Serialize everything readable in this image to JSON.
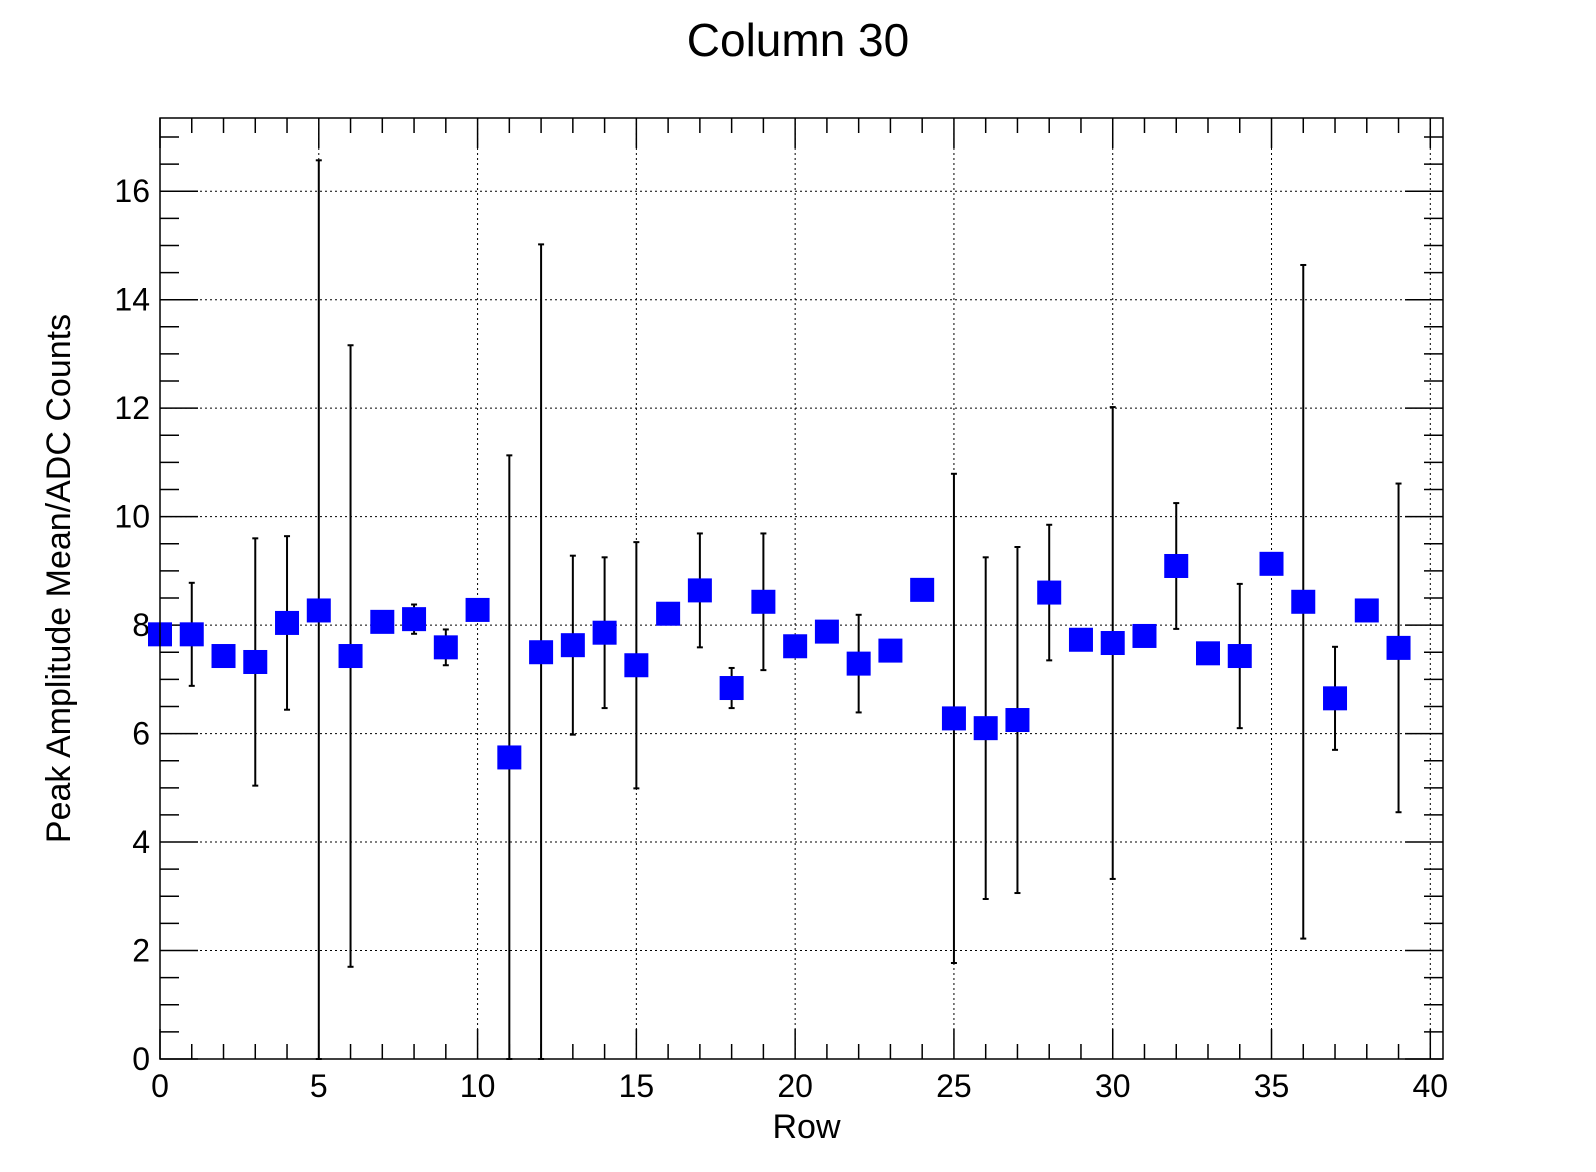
{
  "chart_data": {
    "type": "scatter",
    "title": "Column 30",
    "xlabel": "Row",
    "ylabel": "Peak Amplitude Mean/ADC Counts",
    "xlim": [
      0,
      40.4
    ],
    "ylim": [
      0,
      17.35
    ],
    "xticks": [
      0,
      5,
      10,
      15,
      20,
      25,
      30,
      35,
      40
    ],
    "yticks": [
      0,
      2,
      4,
      6,
      8,
      10,
      12,
      14,
      16
    ],
    "grid": true,
    "marker_color": "#0000ff",
    "points": [
      {
        "x": 0,
        "y": 7.83,
        "err": 0
      },
      {
        "x": 1,
        "y": 7.83,
        "err": 0.95
      },
      {
        "x": 2,
        "y": 7.43,
        "err": 0
      },
      {
        "x": 3,
        "y": 7.32,
        "err": 2.28
      },
      {
        "x": 4,
        "y": 8.04,
        "err": 1.6
      },
      {
        "x": 5,
        "y": 8.27,
        "err": 8.3
      },
      {
        "x": 6,
        "y": 7.43,
        "err": 5.73
      },
      {
        "x": 7,
        "y": 8.06,
        "err": 0
      },
      {
        "x": 8,
        "y": 8.11,
        "err": 0.27
      },
      {
        "x": 9,
        "y": 7.59,
        "err": 0.33
      },
      {
        "x": 10,
        "y": 8.28,
        "err": 0
      },
      {
        "x": 11,
        "y": 5.56,
        "err": 5.57
      },
      {
        "x": 12,
        "y": 7.5,
        "err": 7.52
      },
      {
        "x": 13,
        "y": 7.63,
        "err": 1.65
      },
      {
        "x": 14,
        "y": 7.86,
        "err": 1.39
      },
      {
        "x": 15,
        "y": 7.26,
        "err": 2.27
      },
      {
        "x": 16,
        "y": 8.21,
        "err": 0
      },
      {
        "x": 17,
        "y": 8.64,
        "err": 1.05
      },
      {
        "x": 18,
        "y": 6.84,
        "err": 0.37
      },
      {
        "x": 19,
        "y": 8.43,
        "err": 1.26
      },
      {
        "x": 20,
        "y": 7.61,
        "err": 0
      },
      {
        "x": 21,
        "y": 7.88,
        "err": 0
      },
      {
        "x": 22,
        "y": 7.29,
        "err": 0.9
      },
      {
        "x": 23,
        "y": 7.53,
        "err": 0
      },
      {
        "x": 24,
        "y": 8.65,
        "err": 0
      },
      {
        "x": 25,
        "y": 6.28,
        "err": 4.51
      },
      {
        "x": 26,
        "y": 6.1,
        "err": 3.15
      },
      {
        "x": 27,
        "y": 6.25,
        "err": 3.19
      },
      {
        "x": 28,
        "y": 8.6,
        "err": 1.25
      },
      {
        "x": 29,
        "y": 7.73,
        "err": 0
      },
      {
        "x": 30,
        "y": 7.67,
        "err": 4.35
      },
      {
        "x": 31,
        "y": 7.8,
        "err": 0
      },
      {
        "x": 32,
        "y": 9.09,
        "err": 1.16
      },
      {
        "x": 33,
        "y": 7.48,
        "err": 0
      },
      {
        "x": 34,
        "y": 7.43,
        "err": 1.33
      },
      {
        "x": 35,
        "y": 9.13,
        "err": 0
      },
      {
        "x": 36,
        "y": 8.43,
        "err": 6.21
      },
      {
        "x": 37,
        "y": 6.65,
        "err": 0.95
      },
      {
        "x": 38,
        "y": 8.27,
        "err": 0
      },
      {
        "x": 39,
        "y": 7.58,
        "err": 3.03
      }
    ]
  }
}
